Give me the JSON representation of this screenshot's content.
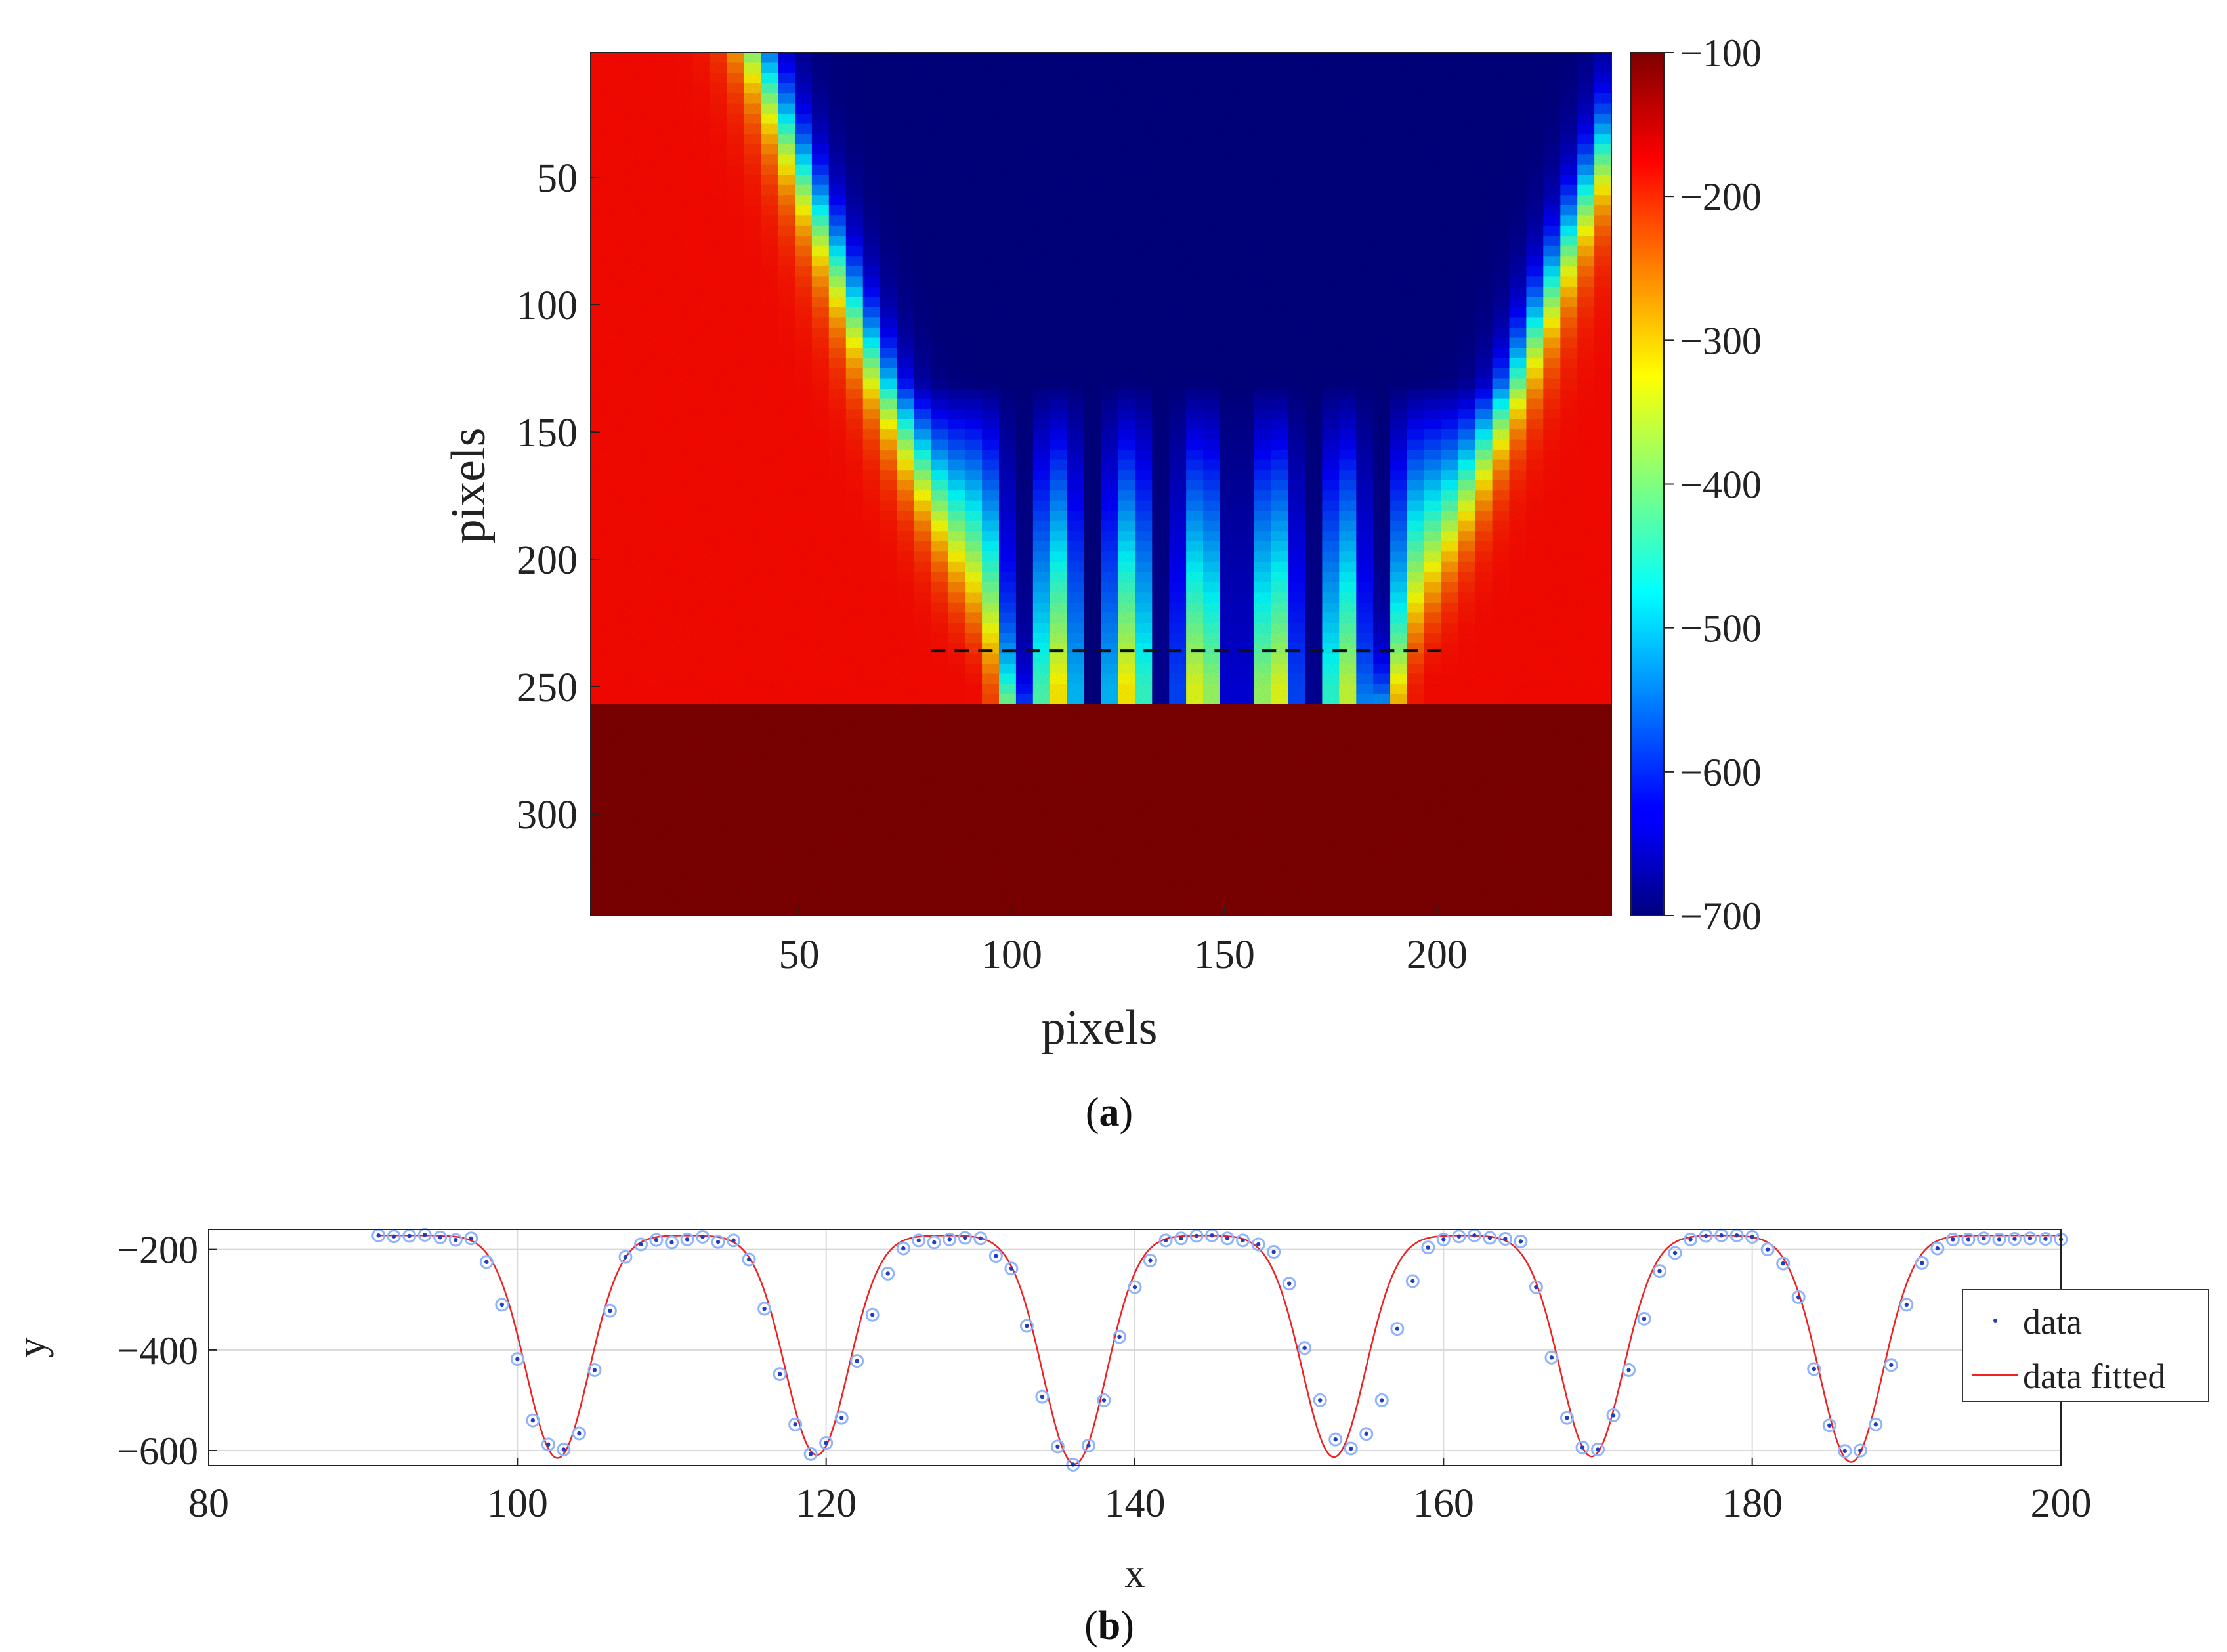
{
  "chart_data": [
    {
      "type": "heatmap",
      "panel_label": "a",
      "xlabel": "pixels",
      "ylabel": "pixels",
      "xlim": [
        1,
        241
      ],
      "ylim": [
        1,
        340
      ],
      "y_reversed": true,
      "xticks": [
        50,
        100,
        150,
        200
      ],
      "yticks": [
        50,
        100,
        150,
        200,
        250,
        300
      ],
      "colorbar": {
        "min": -700,
        "max": -100,
        "colormap": "jet",
        "ticks": [
          -100,
          -200,
          -300,
          -400,
          -500,
          -600,
          -700
        ]
      },
      "values_summary": {
        "background": -180,
        "lower_region": -100,
        "lower_region_start_row": 256,
        "fringe_x": [
          102,
          119,
          136,
          153,
          170,
          186
        ],
        "fringe_min": -700
      },
      "dashed_line": {
        "y": 236,
        "x_from": 81,
        "x_to": 202
      }
    },
    {
      "type": "line",
      "panel_label": "b",
      "xlabel": "x",
      "ylabel": "y",
      "xlim": [
        80,
        200
      ],
      "ylim": [
        -630,
        -160
      ],
      "xticks": [
        80,
        100,
        120,
        140,
        160,
        180,
        200
      ],
      "yticks": [
        -200,
        -400,
        -600
      ],
      "grid": true,
      "legend_position": "right",
      "series": [
        {
          "name": "data",
          "style": "markers",
          "x": [
            91,
            92,
            93,
            94,
            95,
            96,
            97,
            98,
            99,
            100,
            101,
            102,
            103,
            104,
            105,
            106,
            107,
            108,
            109,
            110,
            111,
            112,
            113,
            114,
            115,
            116,
            117,
            118,
            119,
            120,
            121,
            122,
            123,
            124,
            125,
            126,
            127,
            128,
            129,
            130,
            131,
            132,
            133,
            134,
            135,
            136,
            137,
            138,
            139,
            140,
            141,
            142,
            143,
            144,
            145,
            146,
            147,
            148,
            149,
            150,
            151,
            152,
            153,
            154,
            155,
            156,
            157,
            158,
            159,
            160,
            161,
            162,
            163,
            164,
            165,
            166,
            167,
            168,
            169,
            170,
            171,
            172,
            173,
            174,
            175,
            176,
            177,
            178,
            179,
            180,
            181,
            182,
            183,
            184,
            185,
            186,
            187,
            188,
            189,
            190,
            191,
            192,
            193,
            194,
            195,
            196,
            197,
            198,
            199,
            200
          ],
          "y": [
            -172,
            -174,
            -173,
            -171,
            -176,
            -181,
            -178,
            -225,
            -310,
            -418,
            -540,
            -588,
            -598,
            -566,
            -440,
            -322,
            -215,
            -190,
            -181,
            -186,
            -180,
            -175,
            -185,
            -182,
            -220,
            -318,
            -448,
            -548,
            -607,
            -585,
            -535,
            -422,
            -330,
            -248,
            -198,
            -182,
            -186,
            -180,
            -177,
            -178,
            -213,
            -238,
            -352,
            -493,
            -592,
            -628,
            -590,
            -500,
            -374,
            -275,
            -222,
            -182,
            -178,
            -173,
            -172,
            -178,
            -182,
            -190,
            -205,
            -268,
            -396,
            -500,
            -578,
            -596,
            -567,
            -500,
            -358,
            -263,
            -196,
            -180,
            -174,
            -172,
            -177,
            -179,
            -184,
            -275,
            -415,
            -535,
            -594,
            -598,
            -530,
            -440,
            -338,
            -243,
            -207,
            -180,
            -173,
            -172,
            -172,
            -175,
            -200,
            -228,
            -295,
            -438,
            -550,
            -601,
            -600,
            -548,
            -430,
            -310,
            -227,
            -198,
            -180,
            -180,
            -178,
            -180,
            -179,
            -178,
            -179,
            -180
          ]
        },
        {
          "name": "data fitted",
          "style": "line",
          "baseline": -172,
          "centers": [
            102.6,
            119.4,
            136.1,
            152.9,
            169.6,
            186.4
          ],
          "depths": [
            443,
            437,
            455,
            441,
            440,
            451
          ],
          "sigma": 2.05
        }
      ]
    }
  ],
  "colors": {
    "markers": "#1f3fbf",
    "marker_ring": "#8fb4ff",
    "fit_line": "#ee2222",
    "dashed": "#111111",
    "axis": "#222222",
    "grid": "#d9d9d9"
  }
}
